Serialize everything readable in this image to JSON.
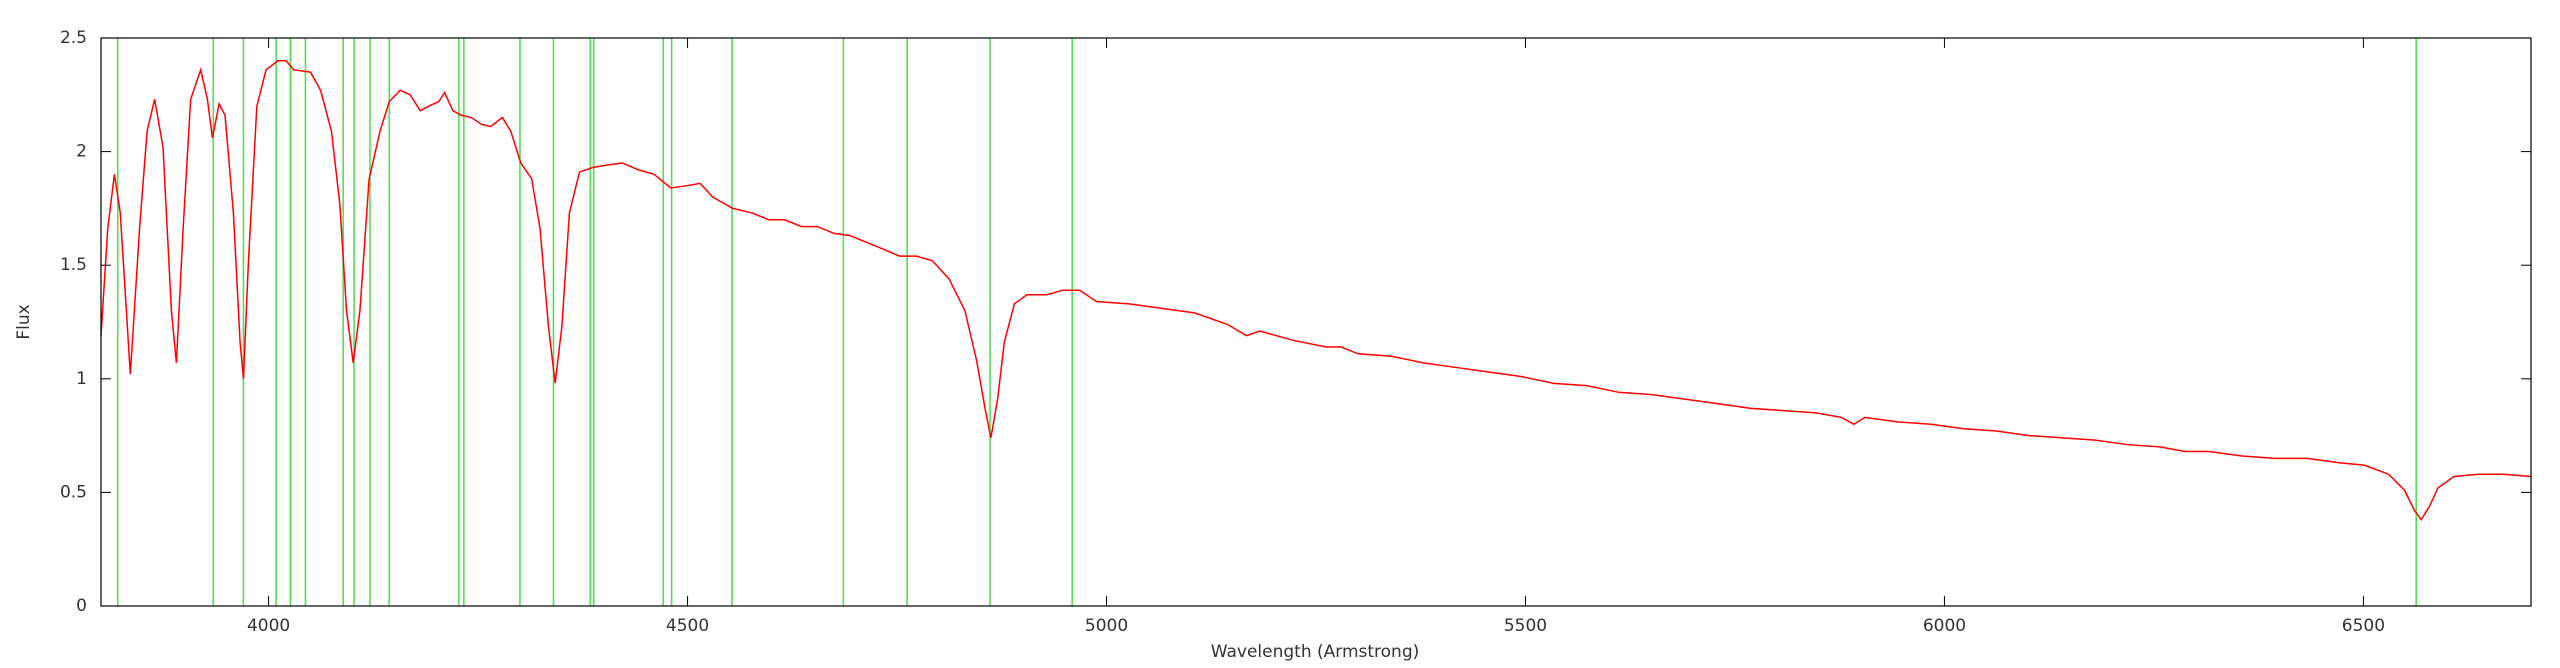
{
  "chart_data": {
    "type": "line",
    "xlabel": "Wavelength (Armstrong)",
    "ylabel": "Flux",
    "xlim": [
      3800,
      6700
    ],
    "xticks": [
      4000,
      4500,
      5000,
      5500,
      6000,
      6500
    ],
    "ylim": [
      0,
      2.5
    ],
    "yticks": [
      0,
      0.5,
      1,
      1.5,
      2,
      2.5
    ],
    "grid": false,
    "x": [
      3800,
      3808,
      3816,
      3823,
      3835,
      3846,
      3855,
      3864,
      3874,
      3884,
      3890,
      3898,
      3907,
      3919,
      3927,
      3933,
      3941,
      3948,
      3958,
      3966,
      3970,
      3976,
      3986,
      3997,
      4011,
      4021,
      4030,
      4050,
      4062,
      4075,
      4085,
      4093,
      4101,
      4109,
      4120,
      4133,
      4144,
      4157,
      4169,
      4181,
      4191,
      4203,
      4210,
      4220,
      4230,
      4242,
      4254,
      4265,
      4279,
      4289,
      4301,
      4314,
      4324,
      4334,
      4342,
      4350,
      4359,
      4371,
      4387,
      4402,
      4422,
      4441,
      4460,
      4480,
      4499,
      4515,
      4530,
      4554,
      4577,
      4597,
      4616,
      4636,
      4655,
      4675,
      4694,
      4714,
      4734,
      4753,
      4773,
      4792,
      4812,
      4831,
      4845,
      4855,
      4862,
      4870,
      4878,
      4890,
      4905,
      4929,
      4948,
      4968,
      4988,
      5027,
      5066,
      5105,
      5144,
      5167,
      5183,
      5222,
      5262,
      5280,
      5300,
      5339,
      5378,
      5417,
      5456,
      5495,
      5534,
      5573,
      5612,
      5652,
      5691,
      5730,
      5769,
      5808,
      5847,
      5877,
      5892,
      5905,
      5945,
      5984,
      6023,
      6062,
      6101,
      6141,
      6180,
      6219,
      6258,
      6287,
      6316,
      6355,
      6394,
      6433,
      6472,
      6501,
      6530,
      6549,
      6561,
      6569,
      6579,
      6589,
      6608,
      6638,
      6667,
      6700
    ],
    "series": [
      {
        "color": "#ff0000",
        "values": [
          1.19,
          1.66,
          1.9,
          1.73,
          1.02,
          1.66,
          2.09,
          2.23,
          2.02,
          1.3,
          1.07,
          1.66,
          2.23,
          2.36,
          2.23,
          2.06,
          2.21,
          2.16,
          1.73,
          1.16,
          1.0,
          1.52,
          2.2,
          2.36,
          2.4,
          2.4,
          2.36,
          2.35,
          2.27,
          2.09,
          1.77,
          1.3,
          1.07,
          1.3,
          1.88,
          2.09,
          2.22,
          2.27,
          2.25,
          2.18,
          2.2,
          2.22,
          2.26,
          2.18,
          2.16,
          2.15,
          2.12,
          2.11,
          2.15,
          2.09,
          1.95,
          1.88,
          1.66,
          1.23,
          0.98,
          1.23,
          1.73,
          1.91,
          1.93,
          1.94,
          1.95,
          1.92,
          1.9,
          1.84,
          1.85,
          1.86,
          1.8,
          1.75,
          1.73,
          1.7,
          1.7,
          1.67,
          1.67,
          1.64,
          1.63,
          1.6,
          1.57,
          1.54,
          1.54,
          1.52,
          1.44,
          1.3,
          1.08,
          0.87,
          0.74,
          0.91,
          1.16,
          1.33,
          1.37,
          1.37,
          1.39,
          1.39,
          1.34,
          1.33,
          1.31,
          1.29,
          1.24,
          1.19,
          1.21,
          1.17,
          1.14,
          1.14,
          1.11,
          1.1,
          1.07,
          1.05,
          1.03,
          1.01,
          0.98,
          0.97,
          0.94,
          0.93,
          0.91,
          0.89,
          0.87,
          0.86,
          0.85,
          0.83,
          0.8,
          0.83,
          0.81,
          0.8,
          0.78,
          0.77,
          0.75,
          0.74,
          0.73,
          0.71,
          0.7,
          0.68,
          0.68,
          0.66,
          0.65,
          0.65,
          0.63,
          0.62,
          0.58,
          0.51,
          0.42,
          0.38,
          0.44,
          0.52,
          0.57,
          0.58,
          0.58,
          0.57
        ]
      }
    ],
    "vlines": {
      "color": "#55dd55",
      "x": [
        3820,
        3934,
        3970,
        4009,
        4026,
        4044,
        4089,
        4102,
        4121,
        4144,
        4227,
        4233,
        4300,
        4340,
        4384,
        4388,
        4471,
        4481,
        4553,
        4686,
        4762,
        4861,
        4959,
        6563
      ]
    }
  }
}
